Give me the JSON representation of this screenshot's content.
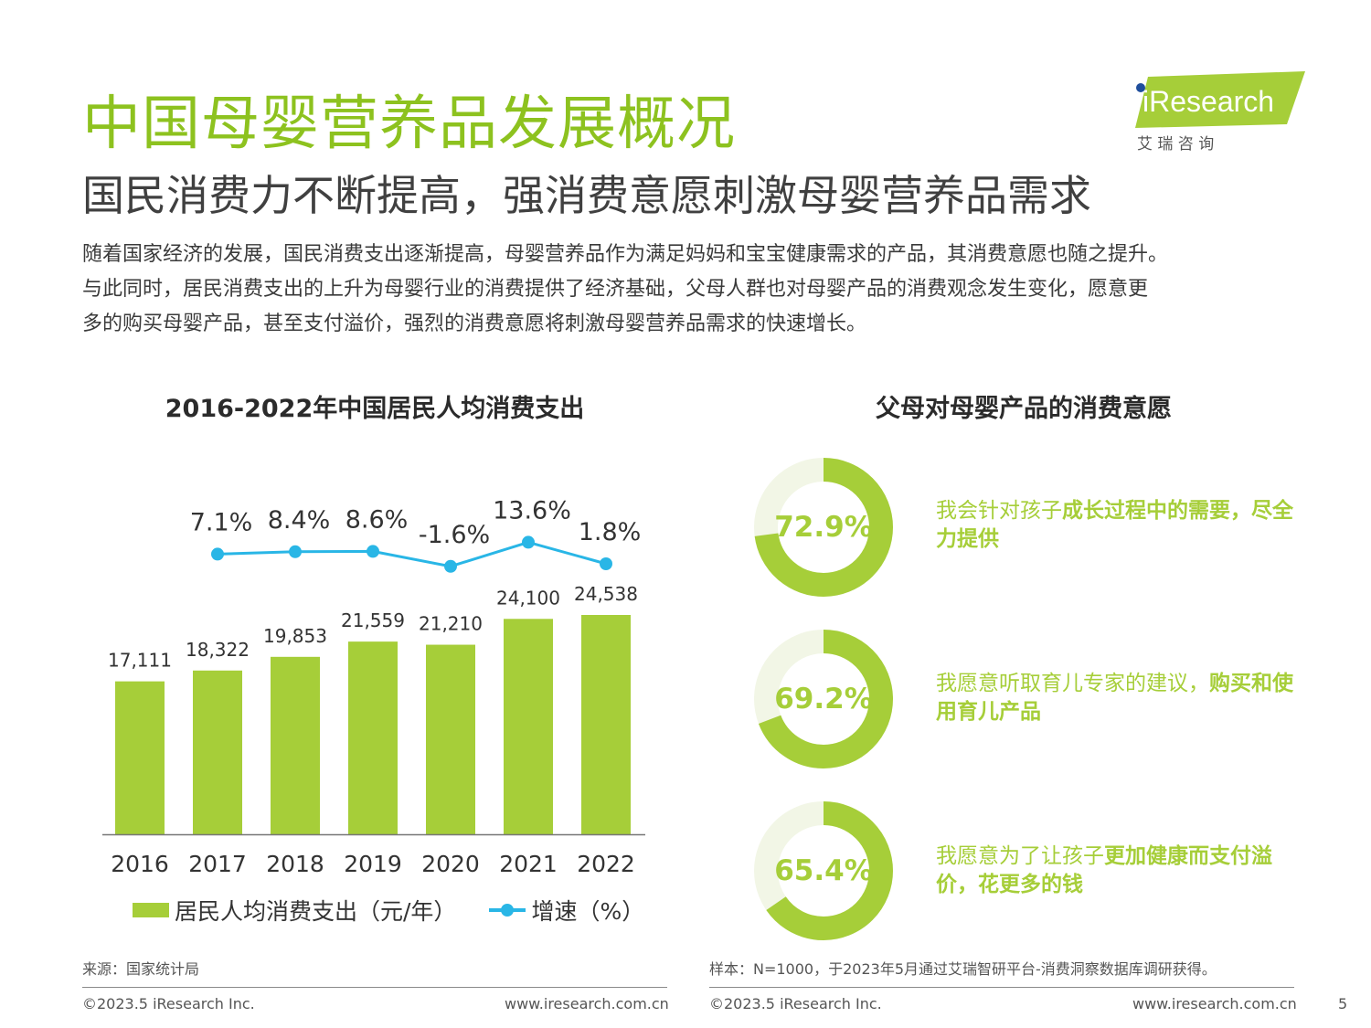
{
  "header": {
    "title": "中国母婴营养品发展概况",
    "subtitle": "国民消费力不断提高，强消费意愿刺激母婴营养品需求",
    "logo_text": "iResearch",
    "logo_cn": "艾 瑞 咨 询",
    "intro_lines": [
      "随着国家经济的发展，国民消费支出逐渐提高，母婴营养品作为满足妈妈和宝宝健康需求的产品，其消费意愿也随之提升。",
      "与此同时，居民消费支出的上升为母婴行业的消费提供了经济基础，父母人群也对母婴产品的消费观念发生变化，愿意更",
      "多的购买母婴产品，甚至支付溢价，强烈的消费意愿将刺激母婴营养品需求的快速增长。"
    ]
  },
  "chart_data": [
    {
      "type": "bar",
      "title": "2016-2022年中国居民人均消费支出",
      "categories": [
        "2016",
        "2017",
        "2018",
        "2019",
        "2020",
        "2021",
        "2022"
      ],
      "series": [
        {
          "name": "居民人均消费支出（元/年）",
          "type": "bar",
          "values": [
            17111,
            18322,
            19853,
            21559,
            21210,
            24100,
            24538
          ],
          "labels": [
            "17,111",
            "18,322",
            "19,853",
            "21,559",
            "21,210",
            "24,100",
            "24,538"
          ],
          "color": "#a6ce39"
        },
        {
          "name": "增速（%）",
          "type": "line",
          "x": [
            "2017",
            "2018",
            "2019",
            "2020",
            "2021",
            "2022"
          ],
          "values": [
            7.1,
            8.4,
            8.6,
            -1.6,
            13.6,
            1.8
          ],
          "labels": [
            "7.1%",
            "8.4%",
            "8.6%",
            "-1.6%",
            "13.6%",
            "1.8%"
          ],
          "color": "#29b6e6"
        }
      ],
      "grid": false,
      "legend": "bottom"
    },
    {
      "type": "pie",
      "title": "父母对母婴产品的消费意愿",
      "items": [
        {
          "value": 72.9,
          "label": "72.9%",
          "text_plain": "我会针对孩子",
          "text_bold": "成长过程中的需要，尽全力提供"
        },
        {
          "value": 69.2,
          "label": "69.2%",
          "text_plain": "我愿意听取育儿专家的建议，",
          "text_bold": "购买和使用育儿产品"
        },
        {
          "value": 65.4,
          "label": "65.4%",
          "text_plain": "我愿意为了让孩子",
          "text_bold": "更加健康而支付溢价，花更多的钱"
        }
      ],
      "colors": {
        "filled": "#a6ce39",
        "remainder": "#f2f6e6"
      }
    }
  ],
  "footer": {
    "source_left": "来源：国家统计局",
    "source_right": "样本：N=1000，于2023年5月通过艾瑞智研平台-消费洞察数据库调研获得。",
    "copyright": "©2023.5 iResearch Inc.",
    "website": "www.iresearch.com.cn",
    "page_number": "5"
  }
}
